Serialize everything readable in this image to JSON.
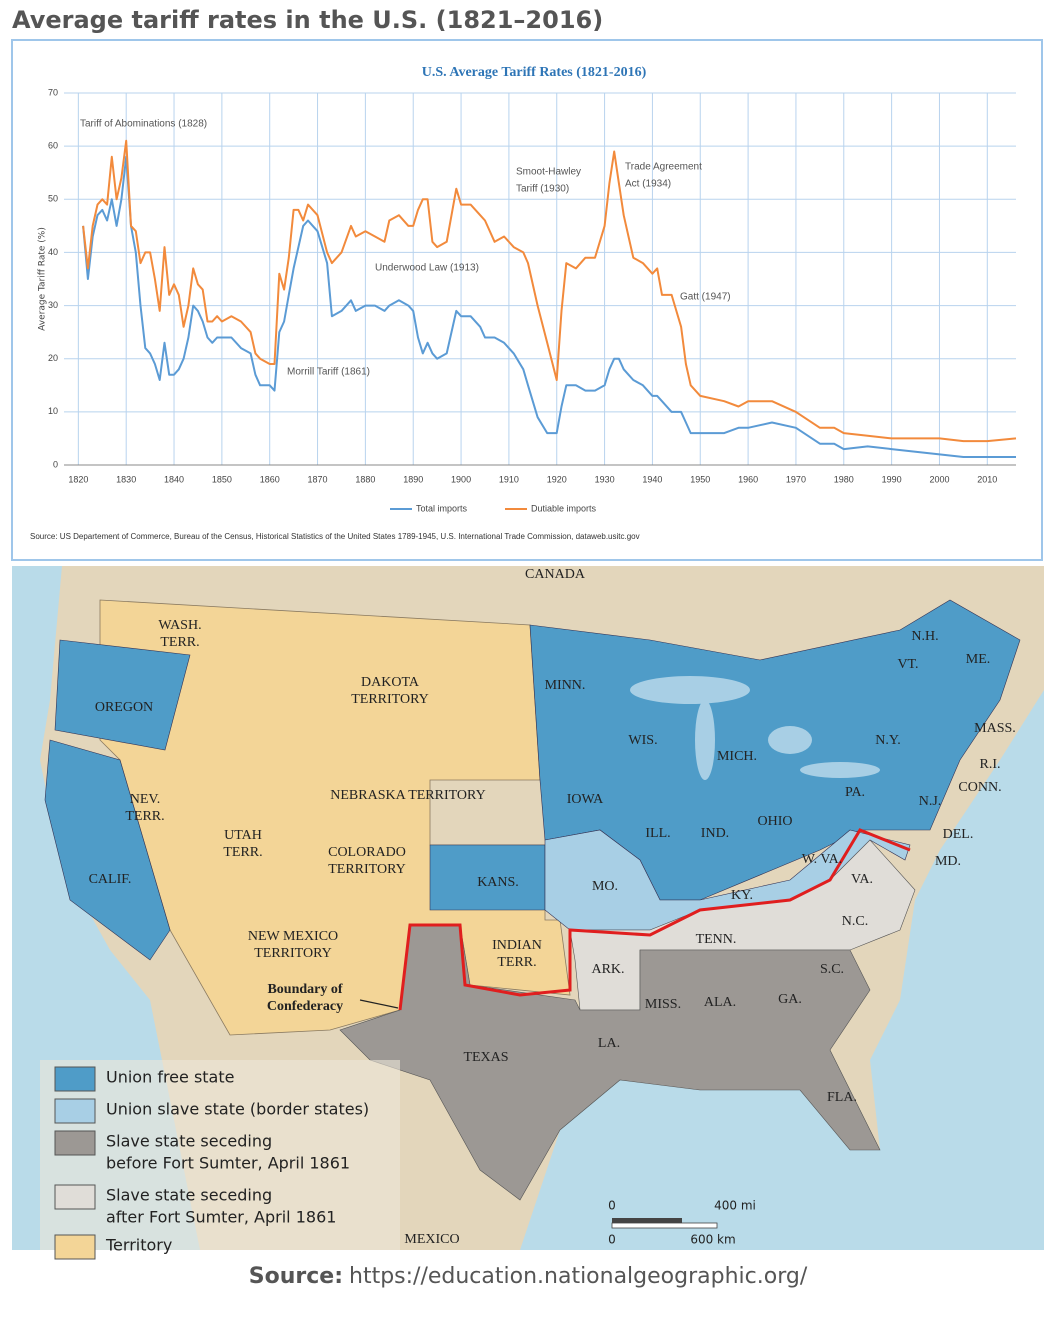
{
  "header": {
    "title": "Average tariff rates in the U.S. (1821–2016)"
  },
  "chart_data": {
    "type": "line",
    "title": "U.S. Average Tariff Rates (1821-2016)",
    "y_label": "Average Tariff Rate (%)",
    "source": "Source: US Departement of Commerce, Bureau of the Census, Historical Statistics of the United States 1789-1945, U.S. International Trade Commission, dataweb.usitc.gov",
    "x": [
      1821,
      1822,
      1823,
      1824,
      1825,
      1826,
      1827,
      1828,
      1829,
      1830,
      1831,
      1832,
      1833,
      1834,
      1835,
      1836,
      1837,
      1838,
      1839,
      1840,
      1841,
      1842,
      1843,
      1844,
      1845,
      1846,
      1847,
      1848,
      1849,
      1850,
      1852,
      1854,
      1856,
      1857,
      1858,
      1860,
      1861,
      1862,
      1863,
      1864,
      1865,
      1866,
      1867,
      1868,
      1869,
      1870,
      1872,
      1873,
      1875,
      1877,
      1878,
      1880,
      1882,
      1884,
      1885,
      1887,
      1889,
      1890,
      1891,
      1892,
      1893,
      1894,
      1895,
      1897,
      1899,
      1900,
      1902,
      1904,
      1905,
      1907,
      1909,
      1911,
      1913,
      1914,
      1916,
      1918,
      1920,
      1921,
      1922,
      1924,
      1926,
      1928,
      1930,
      1931,
      1932,
      1933,
      1934,
      1935,
      1936,
      1938,
      1940,
      1941,
      1942,
      1944,
      1946,
      1947,
      1948,
      1950,
      1955,
      1958,
      1960,
      1965,
      1970,
      1975,
      1978,
      1980,
      1985,
      1990,
      1995,
      2000,
      2005,
      2010,
      2016
    ],
    "series": [
      {
        "name": "Total imports",
        "color": "#5b9bd5",
        "values": [
          45,
          35,
          43,
          47,
          48,
          46,
          50,
          45,
          50,
          58,
          45,
          40,
          30,
          22,
          21,
          19,
          16,
          23,
          17,
          17,
          18,
          20,
          24,
          30,
          29,
          27,
          24,
          23,
          24,
          24,
          24,
          22,
          21,
          17,
          15,
          15,
          14,
          25,
          27,
          32,
          37,
          41,
          45,
          46,
          45,
          44,
          38,
          28,
          29,
          31,
          29,
          30,
          30,
          29,
          30,
          31,
          30,
          29,
          24,
          21,
          23,
          21,
          20,
          21,
          29,
          28,
          28,
          26,
          24,
          24,
          23,
          21,
          18,
          15,
          9,
          6,
          6,
          11,
          15,
          15,
          14,
          14,
          15,
          18,
          20,
          20,
          18,
          17,
          16,
          15,
          13,
          13,
          12,
          10,
          10,
          8,
          6,
          6,
          6,
          7,
          7,
          8,
          7,
          4,
          4,
          3,
          3.5,
          3,
          2.5,
          2,
          1.5,
          1.5,
          1.5
        ]
      },
      {
        "name": "Dutiable imports",
        "color": "#f28a3c",
        "values": [
          45,
          37,
          45,
          49,
          50,
          49,
          58,
          50,
          54,
          61,
          45,
          44,
          38,
          40,
          40,
          35,
          29,
          41,
          32,
          34,
          32,
          26,
          30,
          37,
          34,
          33,
          27,
          27,
          28,
          27,
          28,
          27,
          25,
          21,
          20,
          19,
          19,
          36,
          33,
          39,
          48,
          48,
          46,
          49,
          48,
          47,
          40,
          38,
          40,
          45,
          43,
          44,
          43,
          42,
          46,
          47,
          45,
          45,
          48,
          50,
          50,
          42,
          41,
          42,
          52,
          49,
          49,
          47,
          46,
          42,
          43,
          41,
          40,
          38,
          30,
          23,
          16,
          29,
          38,
          37,
          39,
          39,
          45,
          53,
          59,
          53,
          47,
          43,
          39,
          38,
          36,
          37,
          32,
          32,
          26,
          19,
          15,
          13,
          12,
          11,
          12,
          12,
          10,
          7,
          7,
          6,
          5.5,
          5,
          5,
          5,
          4.5,
          4.5,
          5
        ]
      }
    ],
    "xlim": [
      1817,
      2016
    ],
    "ylim": [
      0,
      70
    ],
    "xticks": [
      1820,
      1830,
      1840,
      1850,
      1860,
      1870,
      1880,
      1890,
      1900,
      1910,
      1920,
      1930,
      1940,
      1950,
      1960,
      1970,
      1980,
      1990,
      2000,
      2010
    ],
    "yticks": [
      0,
      10,
      20,
      30,
      40,
      50,
      60,
      70
    ],
    "grid": true,
    "annotations": [
      [
        "Tariff of Abominations (1828)"
      ],
      [
        "Smoot-Hawley",
        "Tariff (1930)"
      ],
      [
        "Trade Agreement",
        "Act (1934)"
      ],
      [
        "Underwood Law (1913)"
      ],
      [
        "Gatt (1947)"
      ],
      [
        "Morrill Tariff  (1861)"
      ]
    ]
  },
  "map": {
    "labels": [
      [
        "CANADA"
      ],
      [
        "WASH.",
        "TERR."
      ],
      [
        "DAKOTA",
        "TERRITORY"
      ],
      [
        "OREGON"
      ],
      [
        "MINN."
      ],
      [
        "N.H."
      ],
      [
        "VT."
      ],
      [
        "ME."
      ],
      [
        "WIS."
      ],
      [
        "MICH."
      ],
      [
        "N.Y."
      ],
      [
        "MASS."
      ],
      [
        "R.I."
      ],
      [
        "CONN."
      ],
      [
        "NEV.",
        "TERR."
      ],
      [
        "NEBRASKA TERRITORY"
      ],
      [
        "IOWA"
      ],
      [
        "PA."
      ],
      [
        "UTAH",
        "TERR."
      ],
      [
        "COLORADO",
        "TERRITORY"
      ],
      [
        "ILL."
      ],
      [
        "IND."
      ],
      [
        "OHIO"
      ],
      [
        "N.J."
      ],
      [
        "DEL."
      ],
      [
        "MD."
      ],
      [
        "CALIF."
      ],
      [
        "KANS."
      ],
      [
        "MO."
      ],
      [
        "W. VA."
      ],
      [
        "KY."
      ],
      [
        "VA."
      ],
      [
        "NEW MEXICO",
        "TERRITORY"
      ],
      [
        "INDIAN",
        "TERR."
      ],
      [
        "TENN."
      ],
      [
        "N.C."
      ],
      [
        "ARK."
      ],
      [
        "S.C."
      ],
      [
        "Boundary of",
        "Confederacy"
      ],
      [
        "MISS."
      ],
      [
        "ALA."
      ],
      [
        "GA."
      ],
      [
        "LA."
      ],
      [
        "TEXAS"
      ],
      [
        "FLA."
      ],
      [
        "MEXICO"
      ]
    ],
    "legend": [
      {
        "label": [
          "Union free state"
        ],
        "color": "#4f9cc8"
      },
      {
        "label": [
          "Union slave state (border states)"
        ],
        "color": "#a8cfe5"
      },
      {
        "label": [
          "Slave state seceding",
          "before Fort Sumter, April 1861"
        ],
        "color": "#9c9894"
      },
      {
        "label": [
          "Slave state seceding",
          "after Fort Sumter, April 1861"
        ],
        "color": "#e0ddd8"
      },
      {
        "label": [
          "Territory"
        ],
        "color": "#f3d597"
      }
    ],
    "scale": [
      "0",
      "400 mi",
      "0",
      "600 km"
    ]
  },
  "footer": {
    "label": "Source:",
    "url": "https://education.nationalgeographic.org/"
  }
}
